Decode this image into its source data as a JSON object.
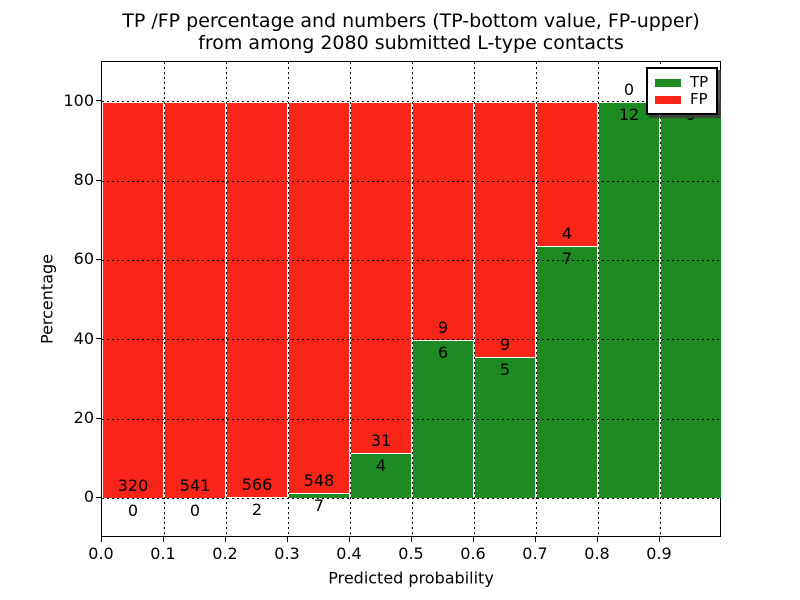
{
  "title": {
    "line1": "TP /FP percentage and numbers (TP-bottom value, FP-upper)",
    "line2": "from among 2080 submitted L-type contacts"
  },
  "axes": {
    "xlabel": "Predicted probability",
    "ylabel": "Percentage",
    "yticks": [
      0,
      20,
      40,
      60,
      80,
      100
    ],
    "xtick_labels": [
      "0.0",
      "0.1",
      "0.2",
      "0.3",
      "0.4",
      "0.5",
      "0.6",
      "0.7",
      "0.8",
      "0.9"
    ],
    "ylim": [
      -10,
      110
    ],
    "xlim": [
      0,
      1
    ],
    "grid": true,
    "grid_style": "dotted"
  },
  "legend": {
    "position": "upper-right",
    "items": [
      {
        "label": "TP",
        "color": "#1e8b22"
      },
      {
        "label": "FP",
        "color": "#f92518"
      }
    ]
  },
  "colors": {
    "tp_green": "#1e8b22",
    "fp_red": "#f92518",
    "bar_edge": "#ffffff",
    "text": "#000000",
    "background": "#ffffff"
  },
  "chart_data": {
    "type": "bar",
    "stacked": true,
    "normalized_to_100_percent": true,
    "title": "TP /FP percentage and numbers (TP-bottom value, FP-upper) from among 2080 submitted L-type contacts",
    "xlabel": "Predicted probability",
    "ylabel": "Percentage",
    "total_contacts": 2080,
    "bin_width": 0.1,
    "bin_starts": [
      0.0,
      0.1,
      0.2,
      0.3,
      0.4,
      0.5,
      0.6,
      0.7,
      0.8,
      0.9
    ],
    "series": [
      {
        "name": "TP",
        "color": "#1e8b22",
        "counts": [
          0,
          0,
          2,
          7,
          4,
          6,
          5,
          7,
          12,
          9
        ],
        "percent": [
          0.0,
          0.0,
          0.35,
          1.26,
          11.43,
          40.0,
          35.71,
          63.64,
          100.0,
          100.0
        ]
      },
      {
        "name": "FP",
        "color": "#f92518",
        "counts": [
          320,
          541,
          566,
          548,
          31,
          9,
          9,
          4,
          0,
          0
        ],
        "percent": [
          100.0,
          100.0,
          99.65,
          98.74,
          88.57,
          60.0,
          64.29,
          36.36,
          0.0,
          0.0
        ]
      }
    ],
    "ylim": [
      -10,
      110
    ],
    "xlim": [
      0,
      1
    ],
    "legend_entries": [
      "TP",
      "FP"
    ],
    "label_note": "TP count drawn below stack boundary, FP count drawn above stack boundary; last-bin FP label occluded by legend"
  }
}
